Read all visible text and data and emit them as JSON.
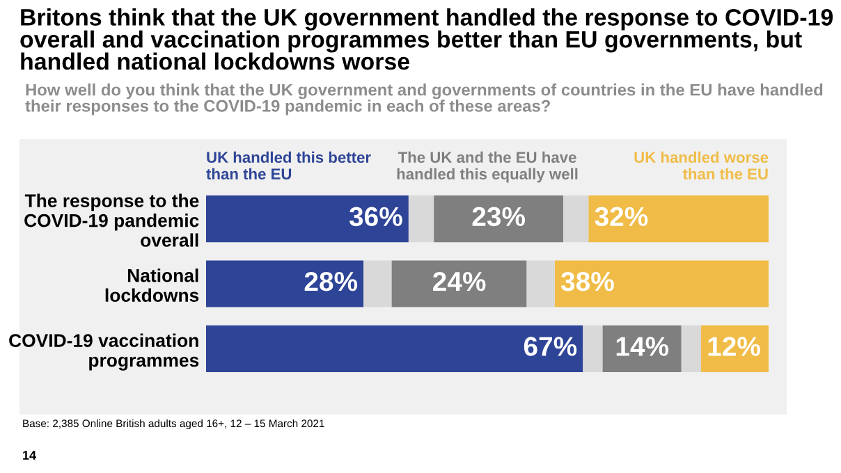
{
  "chart_data": {
    "type": "bar",
    "orientation": "horizontal",
    "stacked": true,
    "title": "Britons think that the UK government handled the response to COVID-19 overall and vaccination programmes better than EU governments, but handled national lockdowns worse",
    "subtitle": "How well do you think that the UK government and governments of countries in the EU have handled their responses to the COVID-19 pandemic in each of these areas?",
    "categories": [
      "The response to the\nCOVID-19 pandemic\noverall",
      "National\nlockdowns",
      "COVID-19 vaccination\nprogrammes"
    ],
    "series": [
      {
        "name": "UK handled this better\nthan the EU",
        "color": "#2e4497",
        "values": [
          36,
          28,
          67
        ],
        "value_labels": [
          "36%",
          "28%",
          "67%"
        ]
      },
      {
        "color": "#d9d9d9",
        "values": [
          4.5,
          5,
          3.5
        ]
      },
      {
        "name": "The UK and the EU have\nhandled this equally well",
        "color": "#7f7f7f",
        "values": [
          23,
          24,
          14
        ],
        "value_labels": [
          "23%",
          "24%",
          "14%"
        ]
      },
      {
        "color": "#d9d9d9",
        "values": [
          4.5,
          5,
          3.5
        ]
      },
      {
        "name": "UK handled worse\nthan the EU",
        "color": "#f0bc47",
        "values": [
          32,
          38,
          12
        ],
        "value_labels": [
          "32%",
          "38%",
          "12%"
        ]
      }
    ],
    "xlim": [
      0,
      100
    ],
    "tick_labels": "y",
    "grid": false,
    "legend": "top",
    "annotations": [
      "Base: 2,385 Online British adults aged 16+, 12 – 15 March 2021",
      "14"
    ]
  }
}
